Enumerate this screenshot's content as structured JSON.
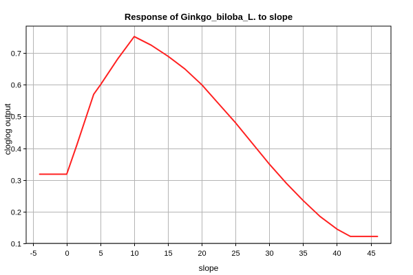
{
  "chart_data": {
    "type": "line",
    "title": "Response of Ginkgo_biloba_L. to slope",
    "xlabel": "slope",
    "ylabel": "cloglog output",
    "xlim": [
      -6,
      48
    ],
    "ylim": [
      0.1,
      0.785
    ],
    "xticks": [
      -5,
      0,
      5,
      10,
      15,
      20,
      25,
      30,
      35,
      40,
      45
    ],
    "yticks": [
      0.1,
      0.2,
      0.3,
      0.4,
      0.5,
      0.6,
      0.7
    ],
    "grid": true,
    "series": [
      {
        "color": "#ff2020",
        "x": [
          -4,
          0,
          1.5,
          4,
          5,
          7.5,
          10,
          12.5,
          15,
          17.5,
          20,
          22.5,
          25,
          27.5,
          30,
          32.5,
          35,
          37.5,
          40,
          42,
          46
        ],
        "y": [
          0.318,
          0.318,
          0.41,
          0.57,
          0.6,
          0.68,
          0.752,
          0.725,
          0.69,
          0.65,
          0.6,
          0.54,
          0.48,
          0.415,
          0.35,
          0.29,
          0.235,
          0.185,
          0.145,
          0.122,
          0.122
        ]
      }
    ]
  }
}
